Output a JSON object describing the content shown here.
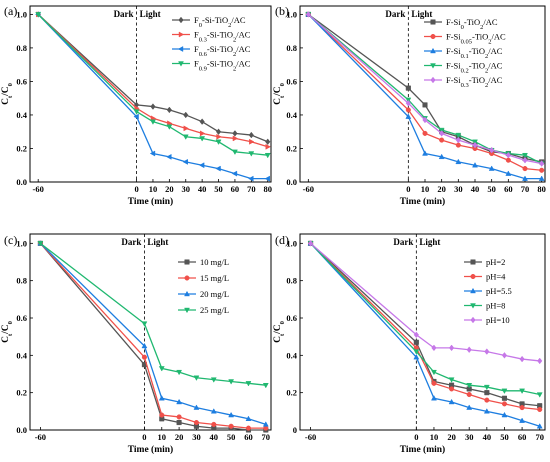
{
  "chart_data": [
    {
      "type": "line",
      "panel_label": "(a)",
      "xlabel": "Time (min)",
      "ylabel": "Ct/C0",
      "xlim": [
        -65,
        82
      ],
      "ylim": [
        0,
        1.05
      ],
      "xticks": [
        -60,
        0,
        10,
        20,
        30,
        40,
        50,
        60,
        70,
        80
      ],
      "yticks": [
        0.0,
        0.2,
        0.4,
        0.6,
        0.8,
        1.0
      ],
      "ytick_labels": [
        "0.0",
        "0.2",
        "0.4",
        "0.6",
        "0.8",
        "1.0"
      ],
      "legend_position": "top-right",
      "annotations": {
        "dark": "Dark",
        "light": "Light"
      },
      "x": [
        -60,
        0,
        10,
        20,
        30,
        40,
        50,
        60,
        70,
        80
      ],
      "series": [
        {
          "name_parts": [
            {
              "t": "F"
            },
            {
              "t": "0",
              "sub": true
            },
            {
              "t": "-Si-TiO"
            },
            {
              "t": "2",
              "sub": true
            },
            {
              "t": "/AC"
            }
          ],
          "color": "#555555",
          "marker": "diamond",
          "values": [
            1.0,
            0.46,
            0.45,
            0.43,
            0.4,
            0.36,
            0.3,
            0.29,
            0.28,
            0.24
          ]
        },
        {
          "name_parts": [
            {
              "t": "F"
            },
            {
              "t": "0.3",
              "sub": true
            },
            {
              "t": "-Si-TiO"
            },
            {
              "t": "2",
              "sub": true
            },
            {
              "t": "/AC"
            }
          ],
          "color": "#f0504a",
          "marker": "triangle-right",
          "values": [
            1.0,
            0.44,
            0.38,
            0.35,
            0.32,
            0.29,
            0.27,
            0.26,
            0.24,
            0.21
          ]
        },
        {
          "name_parts": [
            {
              "t": "F"
            },
            {
              "t": "0.6",
              "sub": true
            },
            {
              "t": "-Si-TiO"
            },
            {
              "t": "2",
              "sub": true
            },
            {
              "t": "/AC"
            }
          ],
          "color": "#1e7ee0",
          "marker": "triangle-left",
          "values": [
            1.0,
            0.39,
            0.17,
            0.15,
            0.12,
            0.1,
            0.08,
            0.05,
            0.02,
            0.02
          ]
        },
        {
          "name_parts": [
            {
              "t": "F"
            },
            {
              "t": "0.9",
              "sub": true
            },
            {
              "t": "-Si-TiO"
            },
            {
              "t": "2",
              "sub": true
            },
            {
              "t": "/AC"
            }
          ],
          "color": "#20b870",
          "marker": "triangle-down",
          "values": [
            1.0,
            0.42,
            0.36,
            0.33,
            0.27,
            0.26,
            0.24,
            0.18,
            0.17,
            0.16
          ]
        }
      ]
    },
    {
      "type": "line",
      "panel_label": "(b)",
      "xlabel": "Time (min)",
      "ylabel": "Ct/C0",
      "xlim": [
        -65,
        82
      ],
      "ylim": [
        0,
        1.05
      ],
      "xticks": [
        -60,
        0,
        10,
        20,
        30,
        40,
        50,
        60,
        70,
        80
      ],
      "yticks": [
        0.0,
        0.2,
        0.4,
        0.6,
        0.8,
        1.0
      ],
      "ytick_labels": [
        "0.0",
        "0.2",
        "0.4",
        "0.6",
        "0.8",
        "1.0"
      ],
      "legend_position": "top-right",
      "annotations": {
        "dark": "Dark",
        "light": "Light"
      },
      "x": [
        -60,
        0,
        10,
        20,
        30,
        40,
        50,
        60,
        70,
        80
      ],
      "series": [
        {
          "name_parts": [
            {
              "t": "F-Si"
            },
            {
              "t": "0",
              "sub": true
            },
            {
              "t": "-TiO"
            },
            {
              "t": "2",
              "sub": true
            },
            {
              "t": "/AC"
            }
          ],
          "color": "#555555",
          "marker": "square",
          "values": [
            1.0,
            0.56,
            0.46,
            0.3,
            0.27,
            0.22,
            0.18,
            0.17,
            0.14,
            0.12
          ]
        },
        {
          "name_parts": [
            {
              "t": "F-Si"
            },
            {
              "t": "0.05",
              "sub": true
            },
            {
              "t": "-TiO"
            },
            {
              "t": "2",
              "sub": true
            },
            {
              "t": "/AC"
            }
          ],
          "color": "#f0504a",
          "marker": "circle",
          "values": [
            1.0,
            0.43,
            0.29,
            0.25,
            0.22,
            0.2,
            0.17,
            0.13,
            0.08,
            0.07
          ]
        },
        {
          "name_parts": [
            {
              "t": "F-Si"
            },
            {
              "t": "0.1",
              "sub": true
            },
            {
              "t": "-TiO"
            },
            {
              "t": "2",
              "sub": true
            },
            {
              "t": "/AC"
            }
          ],
          "color": "#1e7ee0",
          "marker": "triangle",
          "values": [
            1.0,
            0.39,
            0.17,
            0.15,
            0.12,
            0.1,
            0.08,
            0.05,
            0.02,
            0.02
          ]
        },
        {
          "name_parts": [
            {
              "t": "F-Si"
            },
            {
              "t": "0.2",
              "sub": true
            },
            {
              "t": "-TiO"
            },
            {
              "t": "2",
              "sub": true
            },
            {
              "t": "/AC"
            }
          ],
          "color": "#20b870",
          "marker": "triangle-down",
          "values": [
            1.0,
            0.49,
            0.38,
            0.31,
            0.28,
            0.24,
            0.19,
            0.17,
            0.16,
            0.11
          ]
        },
        {
          "name_parts": [
            {
              "t": "F-Si"
            },
            {
              "t": "0.3",
              "sub": true
            },
            {
              "t": "-TiO"
            },
            {
              "t": "2",
              "sub": true
            },
            {
              "t": "/AC"
            }
          ],
          "color": "#c678e8",
          "marker": "diamond",
          "values": [
            1.0,
            0.47,
            0.37,
            0.29,
            0.25,
            0.22,
            0.19,
            0.16,
            0.13,
            0.11
          ]
        }
      ]
    },
    {
      "type": "line",
      "panel_label": "(c)",
      "xlabel": "Time (min)",
      "ylabel": "Ct/C0",
      "xlim": [
        -66,
        73
      ],
      "ylim": [
        0,
        1.05
      ],
      "xticks": [
        -60,
        0,
        10,
        20,
        30,
        40,
        50,
        60,
        70
      ],
      "yticks": [
        0.0,
        0.2,
        0.4,
        0.6,
        0.8,
        1.0
      ],
      "ytick_labels": [
        "0.0",
        "0.2",
        "0.4",
        "0.6",
        "0.8",
        "1.0"
      ],
      "legend_position": "top-right",
      "annotations": {
        "dark": "Dark",
        "light": "Light"
      },
      "x": [
        -60,
        0,
        10,
        20,
        30,
        40,
        50,
        60,
        70
      ],
      "series": [
        {
          "name_parts": [
            {
              "t": "10 mg/L"
            }
          ],
          "color": "#555555",
          "marker": "square",
          "values": [
            1.0,
            0.35,
            0.06,
            0.04,
            0.02,
            0.01,
            0.01,
            0.0,
            0.0
          ]
        },
        {
          "name_parts": [
            {
              "t": "15 mg/L"
            }
          ],
          "color": "#f0504a",
          "marker": "circle",
          "values": [
            1.0,
            0.39,
            0.08,
            0.07,
            0.04,
            0.03,
            0.02,
            0.01,
            0.01
          ]
        },
        {
          "name_parts": [
            {
              "t": "20 mg/L"
            }
          ],
          "color": "#1e7ee0",
          "marker": "triangle",
          "values": [
            1.0,
            0.45,
            0.17,
            0.15,
            0.12,
            0.1,
            0.08,
            0.06,
            0.03
          ]
        },
        {
          "name_parts": [
            {
              "t": "25 mg/L"
            }
          ],
          "color": "#20b870",
          "marker": "triangle-down",
          "values": [
            1.0,
            0.57,
            0.33,
            0.31,
            0.28,
            0.27,
            0.26,
            0.25,
            0.24
          ]
        }
      ]
    },
    {
      "type": "line",
      "panel_label": "(d)",
      "xlabel": "Time (min)",
      "ylabel": "Ct/C0",
      "xlim": [
        -66,
        73
      ],
      "ylim": [
        0,
        1.05
      ],
      "xticks": [
        -60,
        0,
        10,
        20,
        30,
        40,
        50,
        60,
        70
      ],
      "yticks": [
        0.0,
        0.2,
        0.4,
        0.6,
        0.8,
        1.0
      ],
      "ytick_labels": [
        "0",
        "0.2",
        "0.4",
        "0.6",
        "0.8",
        "1.0"
      ],
      "legend_position": "top-right",
      "annotations": {
        "dark": "Dark",
        "light": "Light"
      },
      "x": [
        -60,
        0,
        10,
        20,
        30,
        40,
        50,
        60,
        70
      ],
      "series": [
        {
          "name_parts": [
            {
              "t": "pH=2"
            }
          ],
          "color": "#555555",
          "marker": "square",
          "values": [
            1.0,
            0.47,
            0.26,
            0.24,
            0.22,
            0.2,
            0.17,
            0.14,
            0.13
          ]
        },
        {
          "name_parts": [
            {
              "t": "pH=4"
            }
          ],
          "color": "#f0504a",
          "marker": "circle",
          "values": [
            1.0,
            0.44,
            0.25,
            0.22,
            0.19,
            0.16,
            0.14,
            0.12,
            0.11
          ]
        },
        {
          "name_parts": [
            {
              "t": "pH=5.5"
            }
          ],
          "color": "#1e7ee0",
          "marker": "triangle",
          "values": [
            1.0,
            0.39,
            0.17,
            0.15,
            0.12,
            0.1,
            0.08,
            0.05,
            0.02
          ]
        },
        {
          "name_parts": [
            {
              "t": "pH=8"
            }
          ],
          "color": "#20b870",
          "marker": "triangle-down",
          "values": [
            1.0,
            0.42,
            0.31,
            0.27,
            0.24,
            0.23,
            0.21,
            0.21,
            0.19
          ]
        },
        {
          "name_parts": [
            {
              "t": "pH=10"
            }
          ],
          "color": "#c678e8",
          "marker": "diamond",
          "values": [
            1.0,
            0.51,
            0.44,
            0.44,
            0.43,
            0.42,
            0.4,
            0.38,
            0.37
          ]
        }
      ]
    }
  ]
}
